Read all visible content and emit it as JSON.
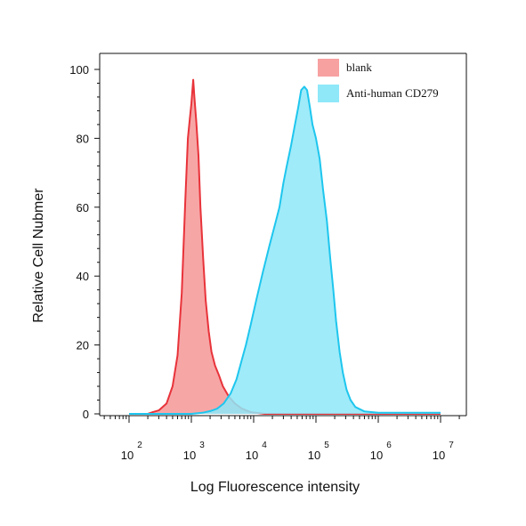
{
  "chart_data": {
    "type": "area",
    "title": "",
    "xlabel": "Log Fluorescence intensity",
    "ylabel": "Relative Cell Nubmer",
    "x_scale": "log10",
    "xlim": [
      100,
      10000000
    ],
    "ylim": [
      0,
      100
    ],
    "x_ticks": [
      {
        "base": "10",
        "exp": "2",
        "value": 100
      },
      {
        "base": "10",
        "exp": "3",
        "value": 1000
      },
      {
        "base": "10",
        "exp": "4",
        "value": 10000
      },
      {
        "base": "10",
        "exp": "5",
        "value": 100000
      },
      {
        "base": "10",
        "exp": "6",
        "value": 1000000
      },
      {
        "base": "10",
        "exp": "7",
        "value": 10000000
      }
    ],
    "y_ticks": [
      {
        "label": "0",
        "value": 0
      },
      {
        "label": "20",
        "value": 20
      },
      {
        "label": "40",
        "value": 40
      },
      {
        "label": "60",
        "value": 60
      },
      {
        "label": "80",
        "value": 80
      },
      {
        "label": "100",
        "value": 100
      }
    ],
    "grid": false,
    "legend_position": "top-right",
    "series": [
      {
        "name": "blank",
        "fill": "#f7a1a1",
        "stroke": "#e8333a",
        "points": [
          [
            100,
            0
          ],
          [
            200,
            0
          ],
          [
            240,
            0.5
          ],
          [
            300,
            1
          ],
          [
            400,
            3
          ],
          [
            500,
            8
          ],
          [
            600,
            17
          ],
          [
            700,
            35
          ],
          [
            800,
            62
          ],
          [
            880,
            80
          ],
          [
            950,
            86
          ],
          [
            1000,
            90
          ],
          [
            1070,
            97
          ],
          [
            1120,
            92
          ],
          [
            1200,
            85
          ],
          [
            1300,
            75
          ],
          [
            1400,
            60
          ],
          [
            1550,
            45
          ],
          [
            1700,
            33
          ],
          [
            1900,
            24
          ],
          [
            2100,
            18
          ],
          [
            2400,
            14
          ],
          [
            2800,
            11
          ],
          [
            3200,
            8
          ],
          [
            4000,
            5
          ],
          [
            5000,
            3
          ],
          [
            6500,
            1.5
          ],
          [
            9000,
            0.5
          ],
          [
            15000,
            0
          ],
          [
            10000000,
            0
          ]
        ]
      },
      {
        "name": "Anti-human CD279",
        "fill": "#8ee8f8",
        "stroke": "#1ec6ee",
        "points": [
          [
            100,
            0
          ],
          [
            1000,
            0
          ],
          [
            1500,
            0.3
          ],
          [
            2000,
            0.8
          ],
          [
            2600,
            1.5
          ],
          [
            3300,
            3
          ],
          [
            4300,
            6
          ],
          [
            5300,
            10
          ],
          [
            6300,
            15
          ],
          [
            7500,
            20
          ],
          [
            9000,
            26
          ],
          [
            11000,
            33
          ],
          [
            14000,
            41
          ],
          [
            18000,
            49
          ],
          [
            22000,
            55
          ],
          [
            26000,
            60
          ],
          [
            30000,
            67
          ],
          [
            34000,
            72
          ],
          [
            40000,
            78
          ],
          [
            46000,
            84
          ],
          [
            52000,
            89
          ],
          [
            58000,
            94
          ],
          [
            65000,
            95
          ],
          [
            72000,
            94
          ],
          [
            80000,
            89
          ],
          [
            88000,
            84
          ],
          [
            100000,
            80
          ],
          [
            115000,
            74
          ],
          [
            130000,
            65
          ],
          [
            150000,
            56
          ],
          [
            170000,
            45
          ],
          [
            190000,
            36
          ],
          [
            210000,
            27
          ],
          [
            240000,
            18
          ],
          [
            270000,
            12
          ],
          [
            310000,
            7
          ],
          [
            360000,
            4
          ],
          [
            430000,
            2
          ],
          [
            600000,
            0.7
          ],
          [
            1000000,
            0.3
          ],
          [
            10000000,
            0.3
          ]
        ]
      }
    ]
  }
}
